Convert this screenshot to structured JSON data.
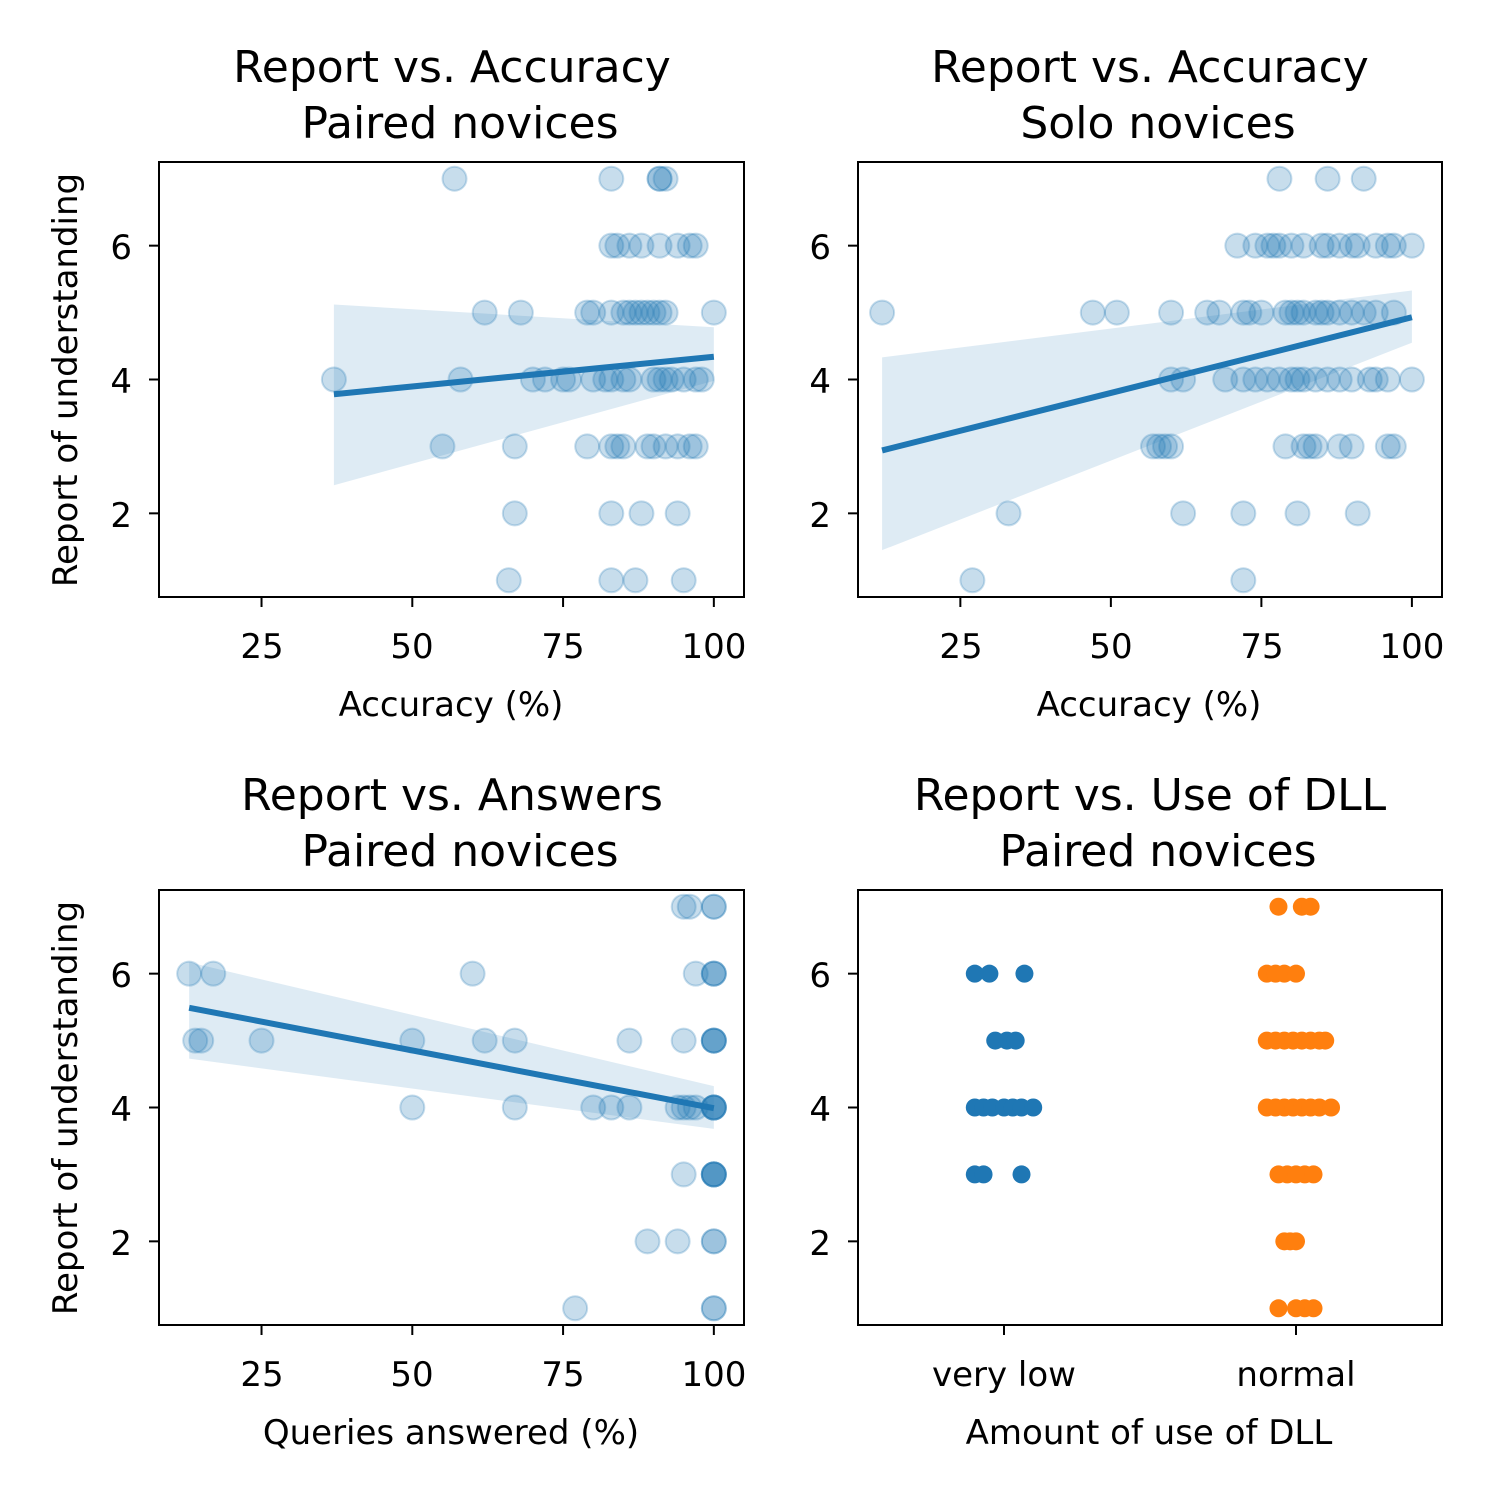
{
  "colors": {
    "blue": "#1f77b4",
    "orange": "#ff7f0e"
  },
  "chart_data": [
    {
      "type": "scatter",
      "title": "Report vs. Accuracy",
      "subtitle": "Paired novices",
      "xlabel": "Accuracy (%)",
      "ylabel": "Report of understanding",
      "xlim": [
        8,
        105
      ],
      "ylim": [
        0.75,
        7.25
      ],
      "xticks": [
        "25",
        "50",
        "75",
        "100"
      ],
      "yticks": [
        "2",
        "4",
        "6"
      ],
      "grid": false,
      "series": [
        {
          "color": "#1f77b4",
          "x": [
            57,
            83,
            91,
            91,
            92,
            83,
            84,
            86,
            88,
            91,
            94,
            96,
            97,
            62,
            68,
            79,
            80,
            83,
            85,
            86,
            87,
            88,
            89,
            90,
            91,
            92,
            100,
            37,
            58,
            70,
            72,
            75,
            76,
            80,
            82,
            83,
            85,
            86,
            90,
            91,
            92,
            93,
            95,
            97,
            98,
            55,
            67,
            79,
            83,
            84,
            85,
            89,
            90,
            92,
            94,
            96,
            97,
            67,
            83,
            88,
            94,
            66,
            83,
            87,
            95
          ],
          "y": [
            7,
            7,
            7,
            7,
            7,
            6,
            6,
            6,
            6,
            6,
            6,
            6,
            6,
            5,
            5,
            5,
            5,
            5,
            5,
            5,
            5,
            5,
            5,
            5,
            5,
            5,
            5,
            4,
            4,
            4,
            4,
            4,
            4,
            4,
            4,
            4,
            4,
            4,
            4,
            4,
            4,
            4,
            4,
            4,
            4,
            3,
            3,
            3,
            3,
            3,
            3,
            3,
            3,
            3,
            3,
            3,
            3,
            2,
            2,
            2,
            2,
            1,
            1,
            1,
            1
          ]
        }
      ],
      "fit": {
        "x": [
          37,
          100
        ],
        "y": [
          3.78,
          4.34
        ],
        "ci_lower": [
          2.42,
          3.98
        ],
        "ci_upper": [
          5.12,
          4.78
        ]
      }
    },
    {
      "type": "scatter",
      "title": "Report vs. Accuracy",
      "subtitle": "Solo novices",
      "xlabel": "Accuracy (%)",
      "ylabel": "",
      "xlim": [
        8,
        105
      ],
      "ylim": [
        0.75,
        7.25
      ],
      "xticks": [
        "25",
        "50",
        "75",
        "100"
      ],
      "yticks": [
        "2",
        "4",
        "6"
      ],
      "grid": false,
      "series": [
        {
          "color": "#1f77b4",
          "x": [
            78,
            86,
            92,
            71,
            74,
            76,
            77,
            78,
            80,
            82,
            85,
            86,
            88,
            90,
            91,
            94,
            96,
            97,
            100,
            12,
            47,
            51,
            60,
            66,
            68,
            72,
            73,
            75,
            79,
            80,
            81,
            82,
            84,
            85,
            86,
            88,
            90,
            92,
            94,
            97,
            60,
            62,
            69,
            72,
            74,
            76,
            78,
            80,
            81,
            82,
            84,
            86,
            88,
            90,
            93,
            94,
            96,
            100,
            57,
            58,
            59,
            60,
            79,
            82,
            83,
            84,
            88,
            90,
            96,
            97,
            33,
            62,
            72,
            81,
            91,
            27,
            72
          ],
          "y": [
            7,
            7,
            7,
            6,
            6,
            6,
            6,
            6,
            6,
            6,
            6,
            6,
            6,
            6,
            6,
            6,
            6,
            6,
            6,
            5,
            5,
            5,
            5,
            5,
            5,
            5,
            5,
            5,
            5,
            5,
            5,
            5,
            5,
            5,
            5,
            5,
            5,
            5,
            5,
            5,
            4,
            4,
            4,
            4,
            4,
            4,
            4,
            4,
            4,
            4,
            4,
            4,
            4,
            4,
            4,
            4,
            4,
            4,
            3,
            3,
            3,
            3,
            3,
            3,
            3,
            3,
            3,
            3,
            3,
            3,
            2,
            2,
            2,
            2,
            2,
            1,
            1
          ]
        }
      ],
      "fit": {
        "x": [
          12,
          100
        ],
        "y": [
          2.94,
          4.93
        ],
        "ci_lower": [
          1.45,
          4.55
        ],
        "ci_upper": [
          4.33,
          5.33
        ]
      }
    },
    {
      "type": "scatter",
      "title": "Report vs. Answers",
      "subtitle": "Paired novices",
      "xlabel": "Queries answered (%)",
      "ylabel": "Report of understanding",
      "xlim": [
        8,
        105
      ],
      "ylim": [
        0.75,
        7.25
      ],
      "xticks": [
        "25",
        "50",
        "75",
        "100"
      ],
      "yticks": [
        "2",
        "4",
        "6"
      ],
      "grid": false,
      "series": [
        {
          "color": "#1f77b4",
          "x": [
            95,
            96,
            100,
            100,
            13,
            17,
            60,
            97,
            100,
            100,
            100,
            14,
            15,
            25,
            50,
            62,
            67,
            86,
            95,
            100,
            100,
            100,
            100,
            50,
            67,
            80,
            83,
            86,
            94,
            95,
            96,
            97,
            100,
            100,
            100,
            100,
            100,
            95,
            100,
            100,
            100,
            100,
            100,
            89,
            94,
            100,
            100,
            77,
            100,
            100
          ],
          "y": [
            7,
            7,
            7,
            7,
            6,
            6,
            6,
            6,
            6,
            6,
            6,
            5,
            5,
            5,
            5,
            5,
            5,
            5,
            5,
            5,
            5,
            5,
            5,
            4,
            4,
            4,
            4,
            4,
            4,
            4,
            4,
            4,
            4,
            4,
            4,
            4,
            4,
            3,
            3,
            3,
            3,
            3,
            3,
            2,
            2,
            2,
            2,
            1,
            1,
            1
          ]
        }
      ],
      "fit": {
        "x": [
          13,
          100
        ],
        "y": [
          5.49,
          3.99
        ],
        "ci_lower": [
          4.73,
          3.68
        ],
        "ci_upper": [
          6.17,
          4.32
        ]
      }
    },
    {
      "type": "strip",
      "title": "Report vs. Use of DLL",
      "subtitle": "Paired novices",
      "xlabel": "Amount of use of DLL",
      "ylabel": "",
      "ylim": [
        0.75,
        7.25
      ],
      "yticks": [
        "2",
        "4",
        "6"
      ],
      "categories": [
        "very low",
        "normal"
      ],
      "grid": false,
      "series": [
        {
          "name": "very low",
          "color": "#1f77b4",
          "offsets": [
            -0.1,
            -0.05,
            0.07,
            -0.03,
            0.01,
            0.04,
            -0.1,
            -0.07,
            -0.04,
            0.0,
            0.03,
            0.06,
            0.1,
            -0.1,
            -0.07,
            0.06
          ],
          "y": [
            6,
            6,
            6,
            5,
            5,
            5,
            4,
            4,
            4,
            4,
            4,
            4,
            4,
            3,
            3,
            3
          ]
        },
        {
          "name": "normal",
          "color": "#ff7f0e",
          "offsets": [
            -0.06,
            0.02,
            0.05,
            -0.1,
            -0.07,
            -0.04,
            0.0,
            -0.1,
            -0.07,
            -0.04,
            -0.01,
            0.02,
            0.05,
            0.08,
            0.1,
            -0.1,
            -0.07,
            -0.04,
            -0.01,
            0.02,
            0.05,
            0.08,
            0.12,
            -0.06,
            -0.03,
            0.0,
            0.03,
            0.06,
            -0.04,
            -0.02,
            0.0,
            -0.06,
            0.0,
            0.03,
            0.06
          ],
          "y": [
            7,
            7,
            7,
            6,
            6,
            6,
            6,
            5,
            5,
            5,
            5,
            5,
            5,
            5,
            5,
            4,
            4,
            4,
            4,
            4,
            4,
            4,
            4,
            3,
            3,
            3,
            3,
            3,
            2,
            2,
            2,
            1,
            1,
            1,
            1
          ]
        }
      ]
    }
  ]
}
